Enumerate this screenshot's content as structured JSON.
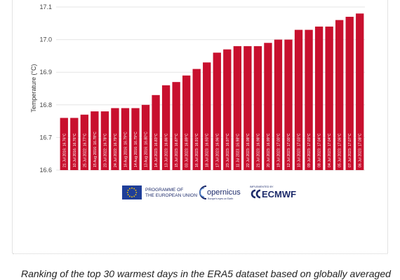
{
  "chart_data": {
    "type": "bar",
    "ylabel": "Temperature (°C)",
    "ylim": [
      16.6,
      17.1
    ],
    "yticks": [
      16.6,
      16.7,
      16.8,
      16.9,
      17.0,
      17.1
    ],
    "grid": true,
    "bar_color": "#c8102e",
    "bars": [
      {
        "label": "21 Jul 2016: 16.76°C",
        "value": 16.76
      },
      {
        "label": "10 Jul 2016: 16.76°C",
        "value": 16.76
      },
      {
        "label": "25 Jul 2022: 16.77°C",
        "value": 16.77
      },
      {
        "label": "15 Aug 2016: 16.78°C",
        "value": 16.78
      },
      {
        "label": "23 Jul 2022: 16.78°C",
        "value": 16.78
      },
      {
        "label": "24 Jul 2022: 16.79°C",
        "value": 16.79
      },
      {
        "label": "16 Aug 2016: 16.79°C",
        "value": 16.79
      },
      {
        "label": "14 Aug 2016: 16.79°C",
        "value": 16.79
      },
      {
        "label": "13 Aug 2016: 16.80°C",
        "value": 16.8
      },
      {
        "label": "14 Jul 2023: 16.83°C",
        "value": 16.83
      },
      {
        "label": "13 Jul 2023: 16.86°C",
        "value": 16.86
      },
      {
        "label": "15 Jul 2023: 16.87°C",
        "value": 16.87
      },
      {
        "label": "03 Jul 2023: 16.89°C",
        "value": 16.89
      },
      {
        "label": "16 Jul 2023: 16.91°C",
        "value": 16.91
      },
      {
        "label": "18 Jul 2023: 16.93°C",
        "value": 16.93
      },
      {
        "label": "17 Jul 2023: 16.96°C",
        "value": 16.96
      },
      {
        "label": "23 Jul 2023: 16.97°C",
        "value": 16.97
      },
      {
        "label": "11 Jul 2023: 16.98°C",
        "value": 16.98
      },
      {
        "label": "22 Jul 2023: 16.98°C",
        "value": 16.98
      },
      {
        "label": "21 Jul 2023: 16.98°C",
        "value": 16.98
      },
      {
        "label": "20 Jul 2023: 16.99°C",
        "value": 16.99
      },
      {
        "label": "19 Jul 2023: 17.00°C",
        "value": 17.0
      },
      {
        "label": "12 Jul 2023: 17.00°C",
        "value": 17.0
      },
      {
        "label": "10 Jul 2023: 17.03°C",
        "value": 17.03
      },
      {
        "label": "09 Jul 2023: 17.03°C",
        "value": 17.03
      },
      {
        "label": "08 Jul 2023: 17.04°C",
        "value": 17.04
      },
      {
        "label": "04 Jul 2023: 17.04°C",
        "value": 17.04
      },
      {
        "label": "05 Jul 2023: 17.06°C",
        "value": 17.06
      },
      {
        "label": "07 Jul 2023: 17.07°C",
        "value": 17.07
      },
      {
        "label": "06 Jul 2023: 17.08°C",
        "value": 17.08
      }
    ]
  },
  "logos": {
    "eu_line1": "PROGRAMME OF",
    "eu_line2": "THE EUROPEAN UNION",
    "copernicus": "opernicus",
    "copernicus_sub": "Europe's eyes on Earth",
    "ecmwf_small": "IMPLEMENTED BY",
    "ecmwf": "ECMWF"
  },
  "caption": "Ranking of the top 30 warmest days in the ERA5 dataset based on globally averaged"
}
